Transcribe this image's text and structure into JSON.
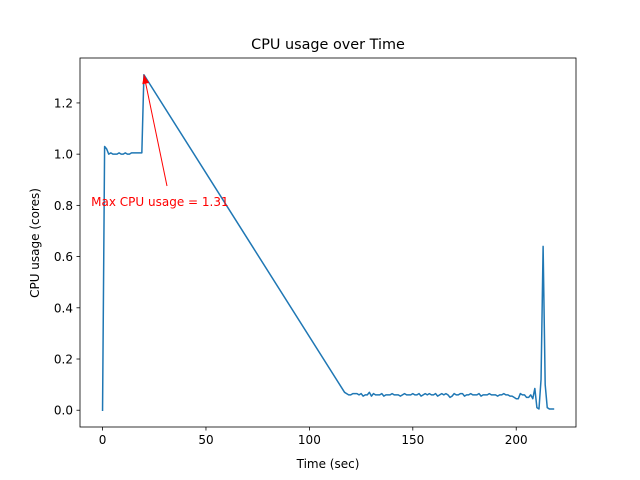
{
  "chart_data": {
    "type": "line",
    "title": "CPU usage over Time",
    "xlabel": "Time (sec)",
    "ylabel": "CPU usage (cores)",
    "xlim": [
      -10.9,
      228.9
    ],
    "ylim": [
      -0.0655,
      1.3755
    ],
    "xticks": [
      0,
      50,
      100,
      150,
      200
    ],
    "yticks": [
      0.0,
      0.2,
      0.4,
      0.6,
      0.8,
      1.0,
      1.2
    ],
    "xtick_labels": [
      "0",
      "50",
      "100",
      "150",
      "200"
    ],
    "ytick_labels": [
      "0.0",
      "0.2",
      "0.4",
      "0.6",
      "0.8",
      "1.0",
      "1.2"
    ],
    "grid": false,
    "series": [
      {
        "color": "#1f77b4",
        "x": [
          0,
          1,
          2,
          3,
          4,
          5,
          6,
          7,
          8,
          9,
          10,
          11,
          12,
          13,
          14,
          15,
          16,
          17,
          18,
          19,
          20,
          117,
          118,
          119,
          120,
          121,
          122,
          123,
          124,
          125,
          126,
          127,
          128,
          129,
          130,
          131,
          132,
          133,
          134,
          135,
          136,
          137,
          138,
          139,
          140,
          141,
          142,
          143,
          144,
          145,
          146,
          147,
          148,
          149,
          150,
          151,
          152,
          153,
          154,
          155,
          156,
          157,
          158,
          159,
          160,
          161,
          162,
          163,
          164,
          165,
          166,
          167,
          168,
          169,
          170,
          171,
          172,
          173,
          174,
          175,
          176,
          177,
          178,
          179,
          180,
          181,
          182,
          183,
          184,
          185,
          186,
          187,
          188,
          189,
          190,
          191,
          192,
          193,
          194,
          195,
          196,
          197,
          198,
          199,
          200,
          201,
          202,
          203,
          204,
          205,
          206,
          207,
          208,
          209,
          210,
          211,
          212,
          213,
          214,
          215,
          216,
          217,
          218
        ],
        "y": [
          0.0,
          1.03,
          1.02,
          1.0,
          1.005,
          1.0,
          1.0,
          1.0,
          1.005,
          1.0,
          1.0,
          1.005,
          1.0,
          1.0,
          1.005,
          1.005,
          1.005,
          1.005,
          1.005,
          1.005,
          1.31,
          0.07,
          0.065,
          0.06,
          0.06,
          0.065,
          0.065,
          0.065,
          0.06,
          0.065,
          0.055,
          0.06,
          0.06,
          0.07,
          0.055,
          0.065,
          0.06,
          0.06,
          0.06,
          0.065,
          0.055,
          0.06,
          0.06,
          0.06,
          0.065,
          0.06,
          0.06,
          0.06,
          0.055,
          0.06,
          0.065,
          0.06,
          0.06,
          0.06,
          0.065,
          0.06,
          0.06,
          0.065,
          0.055,
          0.06,
          0.065,
          0.06,
          0.065,
          0.06,
          0.06,
          0.065,
          0.055,
          0.06,
          0.065,
          0.06,
          0.065,
          0.06,
          0.05,
          0.055,
          0.065,
          0.06,
          0.06,
          0.065,
          0.065,
          0.055,
          0.06,
          0.06,
          0.065,
          0.06,
          0.06,
          0.06,
          0.065,
          0.055,
          0.06,
          0.06,
          0.06,
          0.065,
          0.06,
          0.06,
          0.06,
          0.055,
          0.06,
          0.06,
          0.065,
          0.06,
          0.06,
          0.055,
          0.055,
          0.05,
          0.045,
          0.045,
          0.065,
          0.06,
          0.06,
          0.05,
          0.05,
          0.06,
          0.045,
          0.085,
          0.01,
          0.005,
          0.12,
          0.64,
          0.1,
          0.01,
          0.005,
          0.005,
          0.005
        ]
      }
    ],
    "annotations": [
      {
        "text": "Max CPU usage = 1.31",
        "color": "#ff0000",
        "xy": [
          20,
          1.31
        ],
        "xytext": [
          -5.5,
          0.815
        ]
      }
    ]
  }
}
